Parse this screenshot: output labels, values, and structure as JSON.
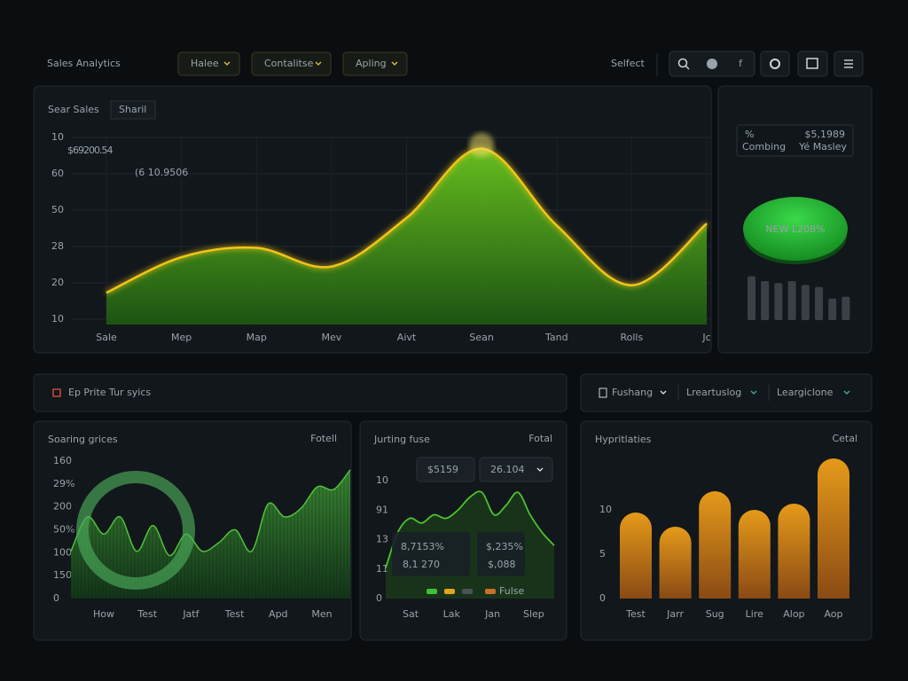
{
  "header": {
    "title": "Sales Analytics",
    "dropdowns": [
      "Halee",
      "Contalitse",
      "Apling"
    ],
    "select": "Selfect",
    "icon_text": "f"
  },
  "main_panel": {
    "tabs": [
      "Sear Sales",
      "Sharil"
    ],
    "value": "$69200.54",
    "subvalue": "(6 10.9506",
    "chart": {
      "type": "area",
      "categories": [
        "Sale",
        "Mep",
        "Map",
        "Mev",
        "Aivt",
        "Sean",
        "Tand",
        "Rolls",
        "Jс"
      ],
      "values": [
        17,
        36,
        41,
        31,
        57,
        94,
        53,
        21,
        54
      ],
      "ylim": [
        0,
        100
      ],
      "y_labels": [
        10,
        60,
        50,
        28,
        20,
        10
      ],
      "color": "#4fae1c",
      "line_color": "#f2c417"
    }
  },
  "side_panel": {
    "card": {
      "left_top": "%",
      "left_bottom": "Combing",
      "right_top": "$5,1989",
      "right_bottom": "Yé Masley"
    },
    "badge": "NEW L208%",
    "chart": {
      "type": "bar",
      "values": [
        45,
        40,
        38,
        40,
        36,
        34,
        22,
        24
      ],
      "ylim": [
        0,
        50
      ],
      "color": "#3a4046"
    }
  },
  "filter_left": {
    "label": "Ep Prite Tur syics"
  },
  "filter_right": {
    "items": [
      "Fushang",
      "Lreartuslog",
      "Leargiclone"
    ]
  },
  "panels": [
    {
      "title": "Soaring grices",
      "link": "Fotell",
      "chart": {
        "type": "area",
        "categories": [
          "How",
          "Test",
          "Jatf",
          "Test",
          "Apd",
          "Men"
        ],
        "values": [
          55,
          95,
          75,
          95,
          55,
          85,
          50,
          75,
          55,
          65,
          80,
          55,
          110,
          95,
          105,
          130,
          127,
          150
        ],
        "ylim": [
          0,
          160
        ],
        "y_labels": [
          160,
          "29%",
          200,
          "50%",
          100,
          150,
          0
        ],
        "color": "#2f7d2a"
      }
    },
    {
      "title": "Jurting fuse",
      "link": "Fotal",
      "chips": [
        "$5159",
        "26.104"
      ],
      "stats": [
        [
          "8,7153%",
          "8,1 270"
        ],
        [
          "$,235%",
          "$,088"
        ]
      ],
      "legend": "Fulse",
      "chart": {
        "type": "line",
        "categories": [
          "Sat",
          "Lak",
          "Jan",
          "Slep"
        ],
        "values": [
          2.6,
          5.6,
          6.8,
          6.4,
          7.1,
          6.8,
          7.5,
          8.6,
          9,
          7.1,
          7.9,
          9,
          7.1,
          5.6,
          4.5
        ],
        "ylim": [
          0,
          10
        ],
        "y_labels": [
          10,
          91,
          13,
          11,
          0
        ],
        "color": "#4cc22e"
      }
    },
    {
      "title": "Hypritlaties",
      "link": "Cetal",
      "chart": {
        "type": "bar",
        "categories": [
          "Test",
          "Jarr",
          "Sug",
          "Lire",
          "Alop",
          "Aop"
        ],
        "values": [
          9.7,
          8.1,
          12.1,
          10,
          10.7,
          15.8
        ],
        "ylim": [
          0,
          16
        ],
        "yticks": [
          10,
          5,
          0
        ],
        "color": "#d98a1c"
      }
    }
  ]
}
